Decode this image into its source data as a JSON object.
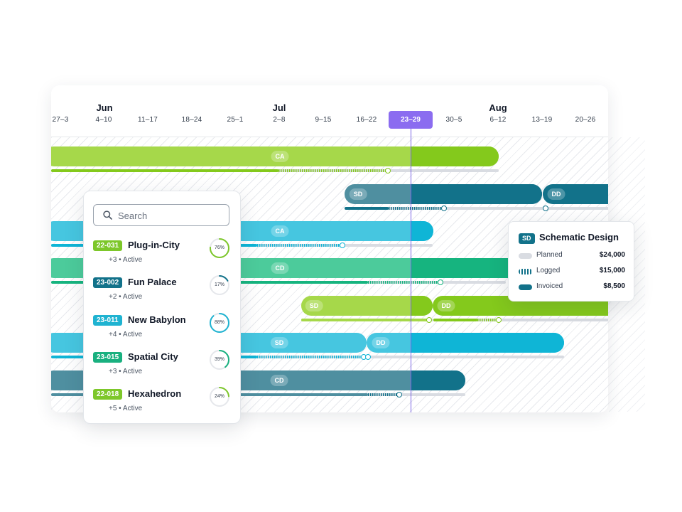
{
  "timeline": {
    "months": [
      {
        "label": "Jun"
      },
      {
        "label": "Jul"
      },
      {
        "label": "Aug"
      }
    ],
    "weeks": [
      "27–3",
      "4–10",
      "11–17",
      "18–24",
      "25–1",
      "2–8",
      "9–15",
      "16–22",
      "23–29",
      "30–5",
      "6–12",
      "13–19",
      "20–26"
    ],
    "current_week": "23–29"
  },
  "gantt_rows": [
    {
      "phases": [
        "CA"
      ]
    },
    {
      "phases": [
        "SD",
        "DD"
      ]
    },
    {
      "phases": [
        "CA"
      ]
    },
    {
      "phases": [
        "CD"
      ]
    },
    {
      "phases": [
        "SD",
        "DD"
      ]
    },
    {
      "phases": [
        "SD",
        "DD"
      ]
    },
    {
      "phases": [
        "CD"
      ]
    }
  ],
  "search": {
    "placeholder": "Search",
    "value": ""
  },
  "projects": [
    {
      "code": "22-031",
      "name": "Plug-in-City",
      "meta": "+3 • Active",
      "progress_label": "76%",
      "progress": 0.76,
      "code_color": "#7dc72a",
      "ring_color": "#7dc72a"
    },
    {
      "code": "23-002",
      "name": "Fun Palace",
      "meta": "+2 • Active",
      "progress_label": "17%",
      "progress": 0.17,
      "code_color": "#12728a",
      "ring_color": "#12728a"
    },
    {
      "code": "23-011",
      "name": "New Babylon",
      "meta": "+4 • Active",
      "progress_label": "88%",
      "progress": 0.88,
      "code_color": "#1fb3d1",
      "ring_color": "#1fb3d1"
    },
    {
      "code": "23-015",
      "name": "Spatial City",
      "meta": "+3 • Active",
      "progress_label": "39%",
      "progress": 0.39,
      "code_color": "#19b07f",
      "ring_color": "#19b07f"
    },
    {
      "code": "22-018",
      "name": "Hexahedron",
      "meta": "+5 • Active",
      "progress_label": "24%",
      "progress": 0.24,
      "code_color": "#7dc72a",
      "ring_color": "#7dc72a"
    }
  ],
  "popup": {
    "badge": "SD",
    "title": "Schematic Design",
    "rows": [
      {
        "label": "Planned",
        "amount": "$24,000"
      },
      {
        "label": "Logged",
        "amount": "$15,000"
      },
      {
        "label": "Invoiced",
        "amount": "$8,500"
      }
    ]
  },
  "colors": {
    "lime": "#84c91c",
    "lime_light": "#a6d84a",
    "teal_dark": "#12728a",
    "teal_mid": "#4f8fa0",
    "cyan": "#0fb5d6",
    "cyan_light": "#46c6e0",
    "green": "#16b47f",
    "green_light": "#4ccb9b",
    "accent_purple": "#8b6cf0",
    "track_gray": "#d9dce2"
  }
}
